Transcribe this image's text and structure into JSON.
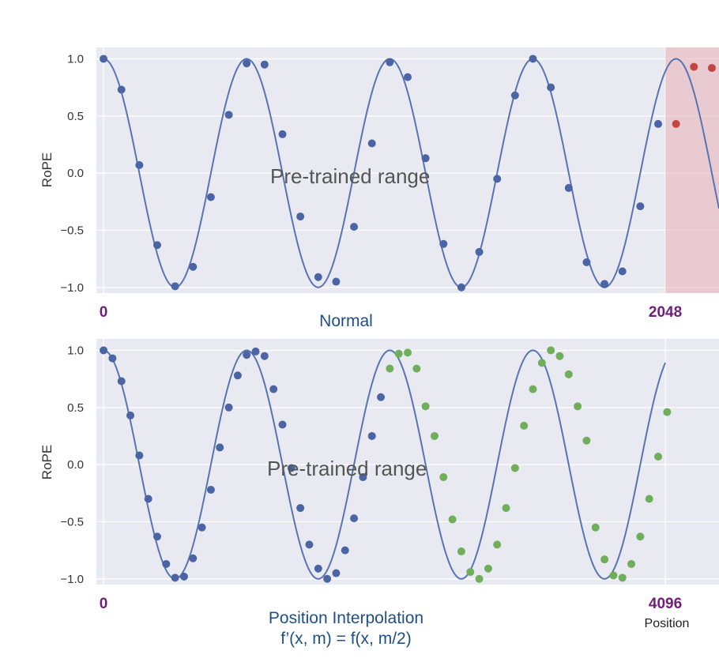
{
  "colors": {
    "panel_bg": "#e9e9f2",
    "grid": "#ffffff",
    "curve": "#5875b1",
    "dot_blue": "#4a64a4",
    "dot_red": "#c0463f",
    "dot_green": "#6fae5a",
    "shade_red": "#e8b0b4",
    "tick_text": "#333333",
    "annotation_text": "#555555",
    "purple": "#6d1f7a",
    "title_blue": "#1f4f86"
  },
  "chart_data": [
    {
      "type": "line",
      "title": "Normal",
      "ylabel": "RoPE",
      "xlabel": "",
      "ylim": [
        -1.05,
        1.1
      ],
      "xlim": [
        -0.1,
        8.6
      ],
      "yticks": [
        1.0,
        0.5,
        0.0,
        -0.5,
        -1.0
      ],
      "ytick_labels": [
        "1.0",
        "0.5",
        "0.0",
        "−0.5",
        "−1.0"
      ],
      "grid": true,
      "curve": {
        "function": "cos",
        "x_range": [
          0,
          8.6
        ]
      },
      "x_markers": [
        {
          "x": 0,
          "label": "0"
        },
        {
          "x": 7.85,
          "label": "2048"
        }
      ],
      "shaded_region": {
        "x_from": 7.85,
        "x_to": 8.6,
        "color": "red"
      },
      "annotation": "Pre-trained range",
      "series": [
        {
          "color": "blue",
          "x": [
            0,
            0.25,
            0.5,
            0.75,
            1.0,
            1.25,
            1.5,
            1.75,
            2.0,
            2.25,
            2.5,
            2.75,
            3.0,
            3.25,
            3.5,
            3.75,
            4.0,
            4.25,
            4.5,
            4.75,
            5.0,
            5.25,
            5.5,
            5.75,
            6.0,
            6.25,
            6.5,
            6.75,
            7.0,
            7.25,
            7.5,
            7.75
          ],
          "y": [
            1.0,
            0.73,
            0.07,
            -0.63,
            -0.99,
            -0.82,
            -0.21,
            0.51,
            0.96,
            0.95,
            0.34,
            -0.38,
            -0.91,
            -0.95,
            -0.47,
            0.26,
            0.97,
            0.84,
            0.13,
            -0.62,
            -1.0,
            -0.69,
            -0.05,
            0.68,
            1.0,
            0.75,
            -0.13,
            -0.78,
            -0.97,
            -0.86,
            -0.29,
            0.43
          ]
        },
        {
          "color": "red",
          "x": [
            8.0,
            8.25,
            8.5
          ],
          "y": [
            0.43,
            0.93,
            0.92
          ]
        }
      ]
    },
    {
      "type": "line",
      "title": "Position Interpolation",
      "subtitle": "f’(x, m) = f(x, m/2)",
      "ylabel": "RoPE",
      "xlabel": "Position",
      "ylim": [
        -1.05,
        1.1
      ],
      "xlim": [
        -0.1,
        8.6
      ],
      "yticks": [
        1.0,
        0.5,
        0.0,
        -0.5,
        -1.0
      ],
      "ytick_labels": [
        "1.0",
        "0.5",
        "0.0",
        "−0.5",
        "−1.0"
      ],
      "grid": true,
      "curve": {
        "function": "cos",
        "x_range": [
          0,
          7.85
        ]
      },
      "x_markers": [
        {
          "x": 0,
          "label": "0"
        },
        {
          "x": 7.85,
          "label": "4096"
        }
      ],
      "annotation": "Pre-trained range",
      "series": [
        {
          "color": "blue",
          "x": [
            0,
            0.125,
            0.25,
            0.375,
            0.5,
            0.625,
            0.75,
            0.875,
            1.0,
            1.125,
            1.25,
            1.375,
            1.5,
            1.625,
            1.75,
            1.875,
            2.0,
            2.125,
            2.25,
            2.375,
            2.5,
            2.625,
            2.75,
            2.875,
            3.0,
            3.125,
            3.25,
            3.375,
            3.5,
            3.625,
            3.75,
            3.875
          ],
          "y": [
            1.0,
            0.93,
            0.73,
            0.43,
            0.08,
            -0.3,
            -0.63,
            -0.87,
            -0.99,
            -0.98,
            -0.82,
            -0.55,
            -0.22,
            0.15,
            0.5,
            0.78,
            0.96,
            0.99,
            0.95,
            0.66,
            0.35,
            -0.03,
            -0.38,
            -0.7,
            -0.91,
            -1.0,
            -0.95,
            -0.75,
            -0.47,
            -0.11,
            0.25,
            0.59
          ]
        },
        {
          "color": "green",
          "x": [
            4.0,
            4.125,
            4.25,
            4.375,
            4.5,
            4.625,
            4.75,
            4.875,
            5.0,
            5.125,
            5.25,
            5.375,
            5.5,
            5.625,
            5.75,
            5.875,
            6.0,
            6.125,
            6.25,
            6.375,
            6.5,
            6.625,
            6.75,
            6.875,
            7.0,
            7.125,
            7.25,
            7.375,
            7.5,
            7.625,
            7.75,
            7.875
          ],
          "y": [
            0.84,
            0.97,
            0.98,
            0.84,
            0.51,
            0.25,
            -0.11,
            -0.48,
            -0.76,
            -0.94,
            -1.0,
            -0.91,
            -0.7,
            -0.38,
            -0.03,
            0.34,
            0.66,
            0.89,
            1.0,
            0.95,
            0.79,
            0.51,
            0.21,
            -0.55,
            -0.83,
            -0.97,
            -0.99,
            -0.87,
            -0.63,
            -0.3,
            0.07,
            0.46
          ]
        }
      ]
    }
  ]
}
